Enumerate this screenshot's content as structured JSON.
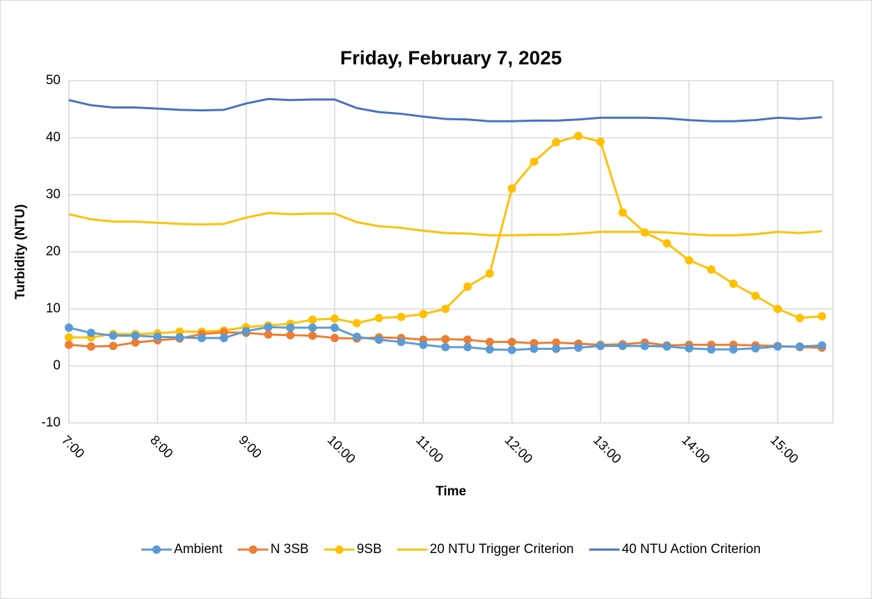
{
  "chart_data": {
    "type": "line",
    "title": "Friday, February 7, 2025",
    "x_label": "Time",
    "y_label": "Turbidity (NTU)",
    "categories": [
      "7:00",
      null,
      null,
      null,
      "8:00",
      null,
      null,
      null,
      "9:00",
      null,
      null,
      null,
      "10:00",
      null,
      null,
      null,
      "11:00",
      null,
      null,
      null,
      "12:00",
      null,
      null,
      null,
      "13:00",
      null,
      null,
      null,
      "14:00",
      null,
      null,
      null,
      "15:00",
      null,
      null
    ],
    "ylim": [
      -10,
      50
    ],
    "yticks": [
      -10,
      0,
      10,
      20,
      30,
      40,
      50
    ],
    "grid": true,
    "legend": "bottom",
    "series": [
      {
        "name": "Ambient",
        "color": "#5b9bd5",
        "markers": true,
        "values": [
          6.7,
          5.8,
          5.3,
          5.3,
          5.1,
          5.0,
          4.9,
          4.9,
          6.1,
          6.8,
          6.7,
          6.7,
          6.7,
          5.1,
          4.6,
          4.2,
          3.7,
          3.3,
          3.3,
          2.9,
          2.8,
          3.0,
          3.0,
          3.2,
          3.5,
          3.5,
          3.5,
          3.4,
          3.1,
          2.9,
          2.9,
          3.1,
          3.4,
          3.4,
          3.6
        ]
      },
      {
        "name": "N 3SB",
        "color": "#ed7d31",
        "markers": true,
        "values": [
          3.7,
          3.4,
          3.5,
          4.1,
          4.5,
          4.8,
          5.6,
          5.9,
          5.8,
          5.5,
          5.4,
          5.3,
          4.9,
          4.8,
          5.0,
          4.9,
          4.6,
          4.7,
          4.6,
          4.2,
          4.2,
          4.0,
          4.1,
          3.9,
          3.7,
          3.8,
          4.1,
          3.6,
          3.7,
          3.7,
          3.7,
          3.6,
          3.5,
          3.3,
          3.2
        ]
      },
      {
        "name": "9SB",
        "color": "#ffc000",
        "markers": true,
        "values": [
          5.0,
          5.0,
          5.6,
          5.6,
          5.7,
          6.0,
          6.0,
          6.2,
          6.8,
          7.1,
          7.4,
          8.1,
          8.3,
          7.5,
          8.4,
          8.6,
          9.1,
          10.0,
          13.9,
          16.2,
          31.1,
          35.8,
          39.2,
          40.3,
          39.3,
          26.9,
          23.4,
          21.5,
          18.5,
          16.9,
          14.4,
          12.3,
          10.0,
          8.4,
          8.7
        ]
      },
      {
        "name": "20 NTU Trigger Criterion",
        "color": "#ffc000",
        "markers": false,
        "values": [
          26.6,
          25.7,
          25.3,
          25.3,
          25.1,
          24.9,
          24.8,
          24.9,
          26.0,
          26.8,
          26.6,
          26.7,
          26.7,
          25.2,
          24.5,
          24.2,
          23.7,
          23.3,
          23.2,
          22.9,
          22.9,
          23.0,
          23.0,
          23.2,
          23.5,
          23.5,
          23.5,
          23.4,
          23.1,
          22.9,
          22.9,
          23.1,
          23.5,
          23.3,
          23.6
        ]
      },
      {
        "name": "40 NTU Action Criterion",
        "color": "#4472c4",
        "markers": false,
        "values": [
          46.6,
          45.7,
          45.3,
          45.3,
          45.1,
          44.9,
          44.8,
          44.9,
          46.0,
          46.8,
          46.6,
          46.7,
          46.7,
          45.2,
          44.5,
          44.2,
          43.7,
          43.3,
          43.2,
          42.9,
          42.9,
          43.0,
          43.0,
          43.2,
          43.5,
          43.5,
          43.5,
          43.4,
          43.1,
          42.9,
          42.9,
          43.1,
          43.5,
          43.3,
          43.6
        ]
      }
    ]
  }
}
